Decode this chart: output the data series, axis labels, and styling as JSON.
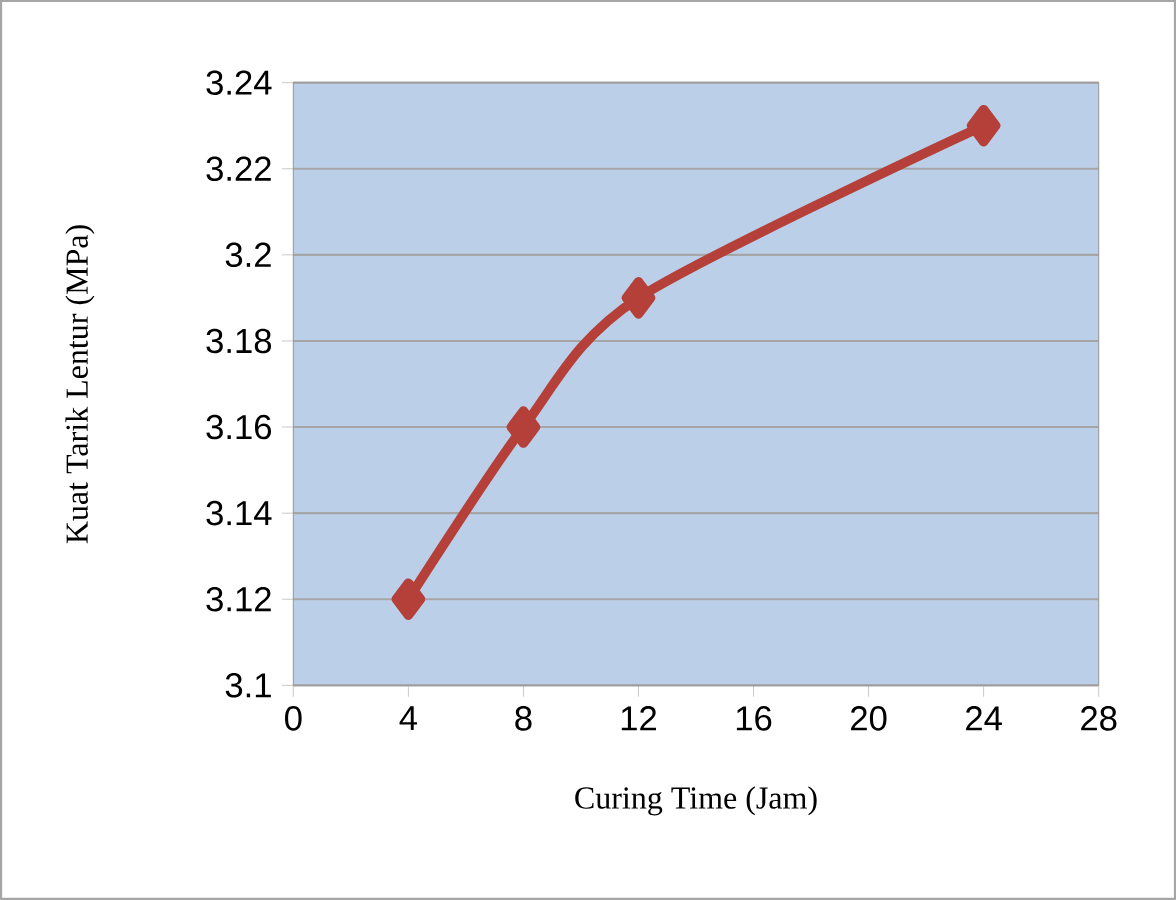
{
  "chart_data": {
    "type": "line",
    "xlabel": "Curing Time (Jam)",
    "ylabel": "Kuat Tarik Lentur (MPa)",
    "x": [
      4,
      8,
      12,
      24
    ],
    "series": [
      {
        "color": "#b5403a",
        "values": [
          3.12,
          3.16,
          3.19,
          3.23
        ]
      }
    ],
    "xlim": [
      0,
      28
    ],
    "xticks": [
      0,
      4,
      8,
      12,
      16,
      20,
      24,
      28
    ],
    "ylim": [
      3.1,
      3.24
    ],
    "yticks": [
      3.1,
      3.12,
      3.14,
      3.16,
      3.18,
      3.2,
      3.22,
      3.24
    ],
    "grid": "y",
    "marker": "diamond",
    "line_style": "solid"
  }
}
